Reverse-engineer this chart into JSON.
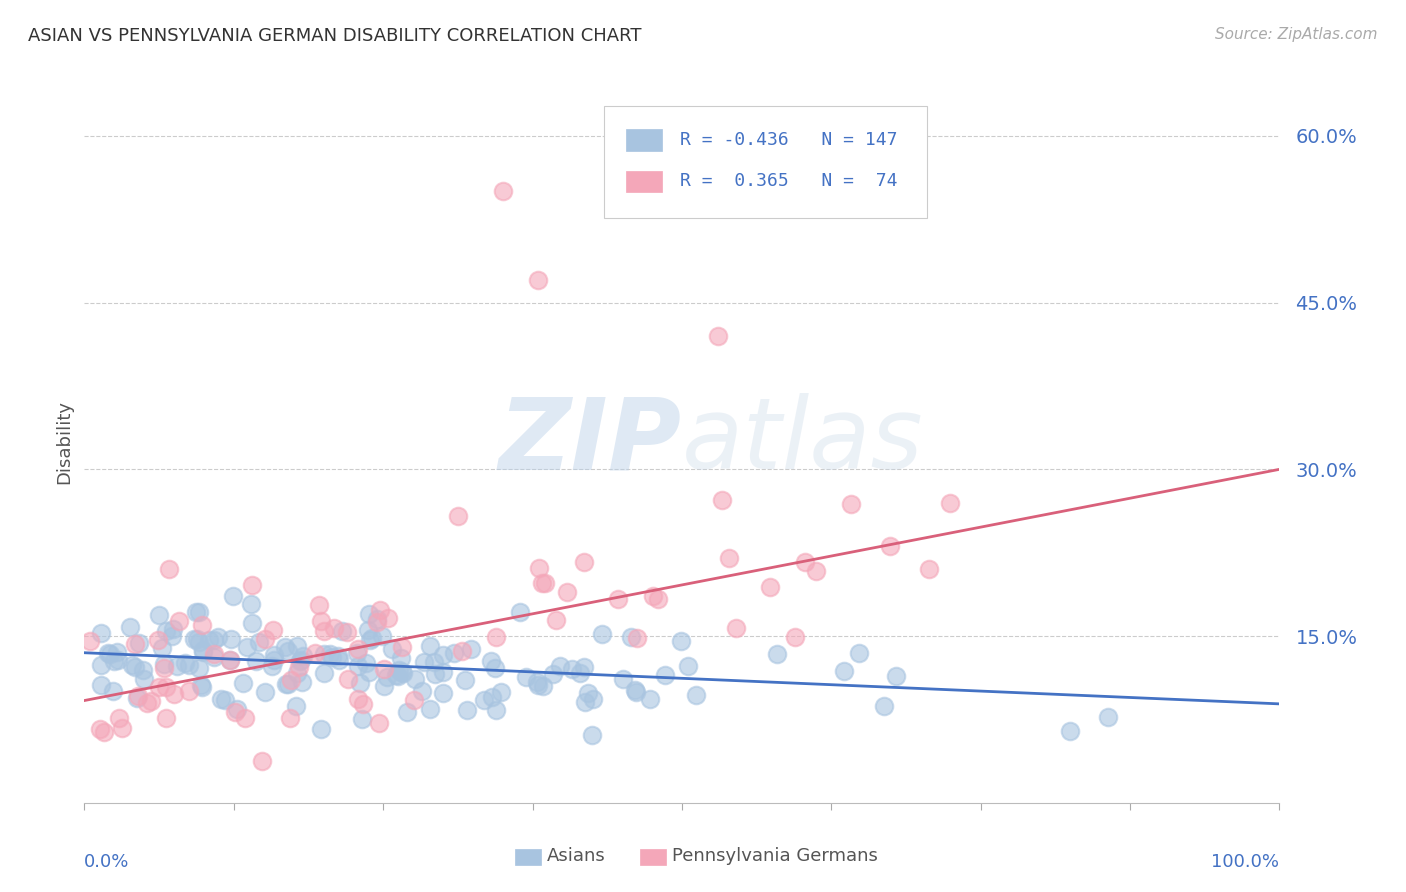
{
  "title": "ASIAN VS PENNSYLVANIA GERMAN DISABILITY CORRELATION CHART",
  "source": "Source: ZipAtlas.com",
  "ylabel": "Disability",
  "ytick_labels": [
    "15.0%",
    "30.0%",
    "45.0%",
    "60.0%"
  ],
  "ytick_values": [
    0.15,
    0.3,
    0.45,
    0.6
  ],
  "asian_color": "#a8c4e0",
  "penn_german_color": "#f4a7b9",
  "asian_line_color": "#4472c4",
  "penn_german_line_color": "#d9607a",
  "axis_label_color": "#4472c4",
  "watermark_color": "#c5d8ee",
  "R_asian": -0.436,
  "N_asian": 147,
  "R_penn": 0.365,
  "N_penn": 74,
  "asian_intercept": 0.135,
  "asian_slope": -0.046,
  "penn_intercept": 0.092,
  "penn_slope": 0.208,
  "xlim": [
    0.0,
    1.0
  ],
  "ylim": [
    0.0,
    0.65
  ],
  "background_color": "#ffffff",
  "grid_color": "#cccccc",
  "seed": 42
}
